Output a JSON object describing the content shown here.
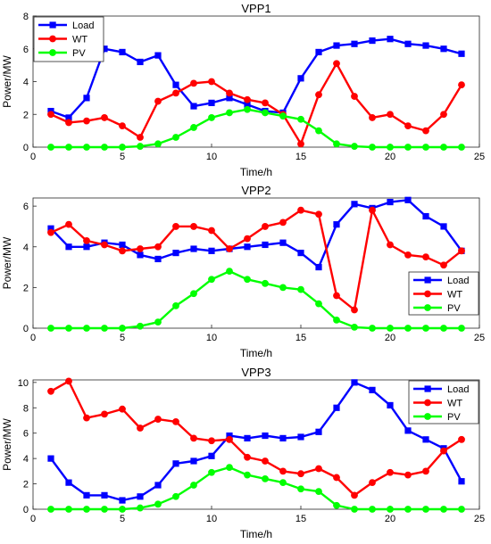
{
  "chart_data": [
    {
      "type": "line",
      "title": "VPP1",
      "xlabel": "Time/h",
      "ylabel": "Power/MW",
      "xlim": [
        0,
        25
      ],
      "ylim": [
        0,
        8
      ],
      "xticks": [
        0,
        5,
        10,
        15,
        20,
        25
      ],
      "yticks": [
        0,
        2,
        4,
        6,
        8
      ],
      "x": [
        1,
        2,
        3,
        4,
        5,
        6,
        7,
        8,
        9,
        10,
        11,
        12,
        13,
        14,
        15,
        16,
        17,
        18,
        19,
        20,
        21,
        22,
        23,
        24
      ],
      "legend_position": "top-left",
      "series": [
        {
          "name": "Load",
          "color": "#0000ff",
          "marker": "square",
          "values": [
            2.2,
            1.8,
            3.0,
            6.0,
            5.8,
            5.2,
            5.6,
            3.8,
            2.5,
            2.7,
            3.0,
            2.6,
            2.2,
            2.1,
            4.2,
            5.8,
            6.2,
            6.3,
            6.5,
            6.6,
            6.3,
            6.2,
            6.0,
            5.7
          ]
        },
        {
          "name": "WT",
          "color": "#ff0000",
          "marker": "circle",
          "values": [
            2.0,
            1.5,
            1.6,
            1.8,
            1.3,
            0.6,
            2.8,
            3.3,
            3.9,
            4.0,
            3.3,
            2.9,
            2.7,
            2.0,
            0.2,
            3.2,
            5.1,
            3.1,
            1.8,
            2.0,
            1.3,
            1.0,
            2.0,
            3.8
          ]
        },
        {
          "name": "PV",
          "color": "#00ff00",
          "marker": "circle",
          "values": [
            0,
            0,
            0,
            0,
            0,
            0.05,
            0.2,
            0.6,
            1.2,
            1.8,
            2.1,
            2.3,
            2.1,
            1.9,
            1.7,
            1.0,
            0.2,
            0.05,
            0,
            0,
            0,
            0,
            0,
            0
          ]
        }
      ]
    },
    {
      "type": "line",
      "title": "VPP2",
      "xlabel": "Time/h",
      "ylabel": "Power/MW",
      "xlim": [
        0,
        25
      ],
      "ylim": [
        0,
        6.4
      ],
      "xticks": [
        0,
        5,
        10,
        15,
        20,
        25
      ],
      "yticks": [
        0,
        2,
        4,
        6
      ],
      "x": [
        1,
        2,
        3,
        4,
        5,
        6,
        7,
        8,
        9,
        10,
        11,
        12,
        13,
        14,
        15,
        16,
        17,
        18,
        19,
        20,
        21,
        22,
        23,
        24
      ],
      "legend_position": "bottom-right",
      "series": [
        {
          "name": "Load",
          "color": "#0000ff",
          "marker": "square",
          "values": [
            4.9,
            4.0,
            4.0,
            4.2,
            4.1,
            3.6,
            3.4,
            3.7,
            3.9,
            3.8,
            3.9,
            4.0,
            4.1,
            4.2,
            3.7,
            3.0,
            5.1,
            6.1,
            5.9,
            6.2,
            6.3,
            5.5,
            5.0,
            3.8
          ]
        },
        {
          "name": "WT",
          "color": "#ff0000",
          "marker": "circle",
          "values": [
            4.7,
            5.1,
            4.3,
            4.1,
            3.8,
            3.9,
            4.0,
            5.0,
            5.0,
            4.8,
            3.9,
            4.4,
            5.0,
            5.2,
            5.8,
            5.6,
            1.6,
            0.9,
            5.8,
            4.1,
            3.6,
            3.5,
            3.1,
            3.8
          ]
        },
        {
          "name": "PV",
          "color": "#00ff00",
          "marker": "circle",
          "values": [
            0,
            0,
            0,
            0,
            0,
            0.1,
            0.3,
            1.1,
            1.7,
            2.4,
            2.8,
            2.4,
            2.2,
            2.0,
            1.9,
            1.2,
            0.4,
            0.05,
            0,
            0,
            0,
            0,
            0,
            0
          ]
        }
      ]
    },
    {
      "type": "line",
      "title": "VPP3",
      "xlabel": "Time/h",
      "ylabel": "Power/MW",
      "xlim": [
        0,
        25
      ],
      "ylim": [
        0,
        10.2
      ],
      "xticks": [
        0,
        5,
        10,
        15,
        20,
        25
      ],
      "yticks": [
        0,
        2,
        4,
        6,
        8,
        10
      ],
      "x": [
        1,
        2,
        3,
        4,
        5,
        6,
        7,
        8,
        9,
        10,
        11,
        12,
        13,
        14,
        15,
        16,
        17,
        18,
        19,
        20,
        21,
        22,
        23,
        24
      ],
      "legend_position": "top-right",
      "series": [
        {
          "name": "Load",
          "color": "#0000ff",
          "marker": "square",
          "values": [
            4.0,
            2.1,
            1.1,
            1.1,
            0.7,
            1.0,
            1.9,
            3.6,
            3.8,
            4.2,
            5.8,
            5.6,
            5.8,
            5.6,
            5.7,
            6.1,
            8.0,
            10.0,
            9.4,
            8.2,
            6.2,
            5.5,
            4.8,
            2.2
          ]
        },
        {
          "name": "WT",
          "color": "#ff0000",
          "marker": "circle",
          "values": [
            9.3,
            10.1,
            7.2,
            7.5,
            7.9,
            6.4,
            7.1,
            6.9,
            5.6,
            5.4,
            5.5,
            4.1,
            3.8,
            3.0,
            2.8,
            3.2,
            2.5,
            1.1,
            2.1,
            2.9,
            2.7,
            3.0,
            4.6,
            5.5
          ]
        },
        {
          "name": "PV",
          "color": "#00ff00",
          "marker": "circle",
          "values": [
            0,
            0,
            0,
            0,
            0,
            0.1,
            0.4,
            1.0,
            1.9,
            2.9,
            3.3,
            2.7,
            2.4,
            2.1,
            1.6,
            1.4,
            0.3,
            0,
            0,
            0,
            0,
            0,
            0,
            0
          ]
        }
      ]
    }
  ]
}
